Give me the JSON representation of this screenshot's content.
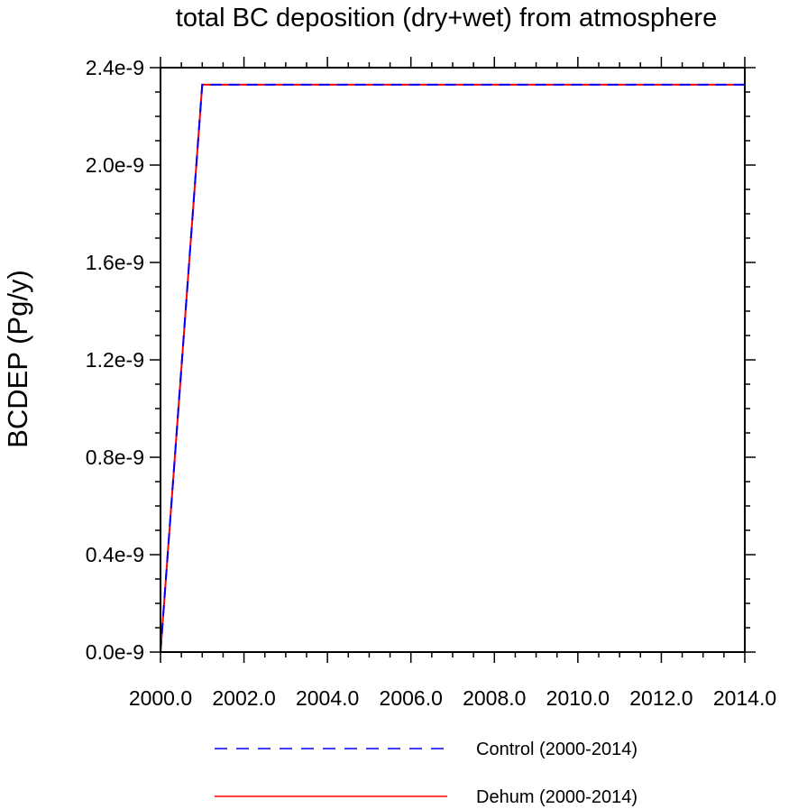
{
  "chart_data": {
    "type": "line",
    "title": "total BC deposition (dry+wet) from atmosphere",
    "xlabel": "",
    "ylabel": "BCDEP  (Pg/y)",
    "xlim": [
      2000.0,
      2014.0
    ],
    "ylim": [
      0.0,
      2.4e-09
    ],
    "x_ticks": [
      2000.0,
      2002.0,
      2004.0,
      2006.0,
      2008.0,
      2010.0,
      2012.0,
      2014.0
    ],
    "x_tick_labels": [
      "2000.0",
      "2002.0",
      "2004.0",
      "2006.0",
      "2008.0",
      "2010.0",
      "2012.0",
      "2014.0"
    ],
    "y_ticks": [
      0.0,
      4e-10,
      8e-10,
      1.2e-09,
      1.6e-09,
      2e-09,
      2.4e-09
    ],
    "y_tick_labels": [
      "0.0e-9",
      "0.4e-9",
      "0.8e-9",
      "1.2e-9",
      "1.6e-9",
      "2.0e-9",
      "2.4e-9"
    ],
    "grid": false,
    "legend_position": "bottom",
    "series": [
      {
        "name": "Control (2000-2014)",
        "color": "#0000ff",
        "dash": "dashed",
        "x": [
          2000.0,
          2001.0,
          2002.0,
          2003.0,
          2004.0,
          2005.0,
          2006.0,
          2007.0,
          2008.0,
          2009.0,
          2010.0,
          2011.0,
          2012.0,
          2013.0,
          2014.0
        ],
        "y": [
          0.0,
          2.33e-09,
          2.33e-09,
          2.33e-09,
          2.33e-09,
          2.33e-09,
          2.33e-09,
          2.33e-09,
          2.33e-09,
          2.33e-09,
          2.33e-09,
          2.33e-09,
          2.33e-09,
          2.33e-09,
          2.33e-09
        ]
      },
      {
        "name": "Dehum (2000-2014)",
        "color": "#ff0000",
        "dash": "solid",
        "x": [
          2000.0,
          2001.0,
          2002.0,
          2003.0,
          2004.0,
          2005.0,
          2006.0,
          2007.0,
          2008.0,
          2009.0,
          2010.0,
          2011.0,
          2012.0,
          2013.0,
          2014.0
        ],
        "y": [
          0.0,
          2.33e-09,
          2.33e-09,
          2.33e-09,
          2.33e-09,
          2.33e-09,
          2.33e-09,
          2.33e-09,
          2.33e-09,
          2.33e-09,
          2.33e-09,
          2.33e-09,
          2.33e-09,
          2.33e-09,
          2.33e-09
        ]
      }
    ]
  }
}
